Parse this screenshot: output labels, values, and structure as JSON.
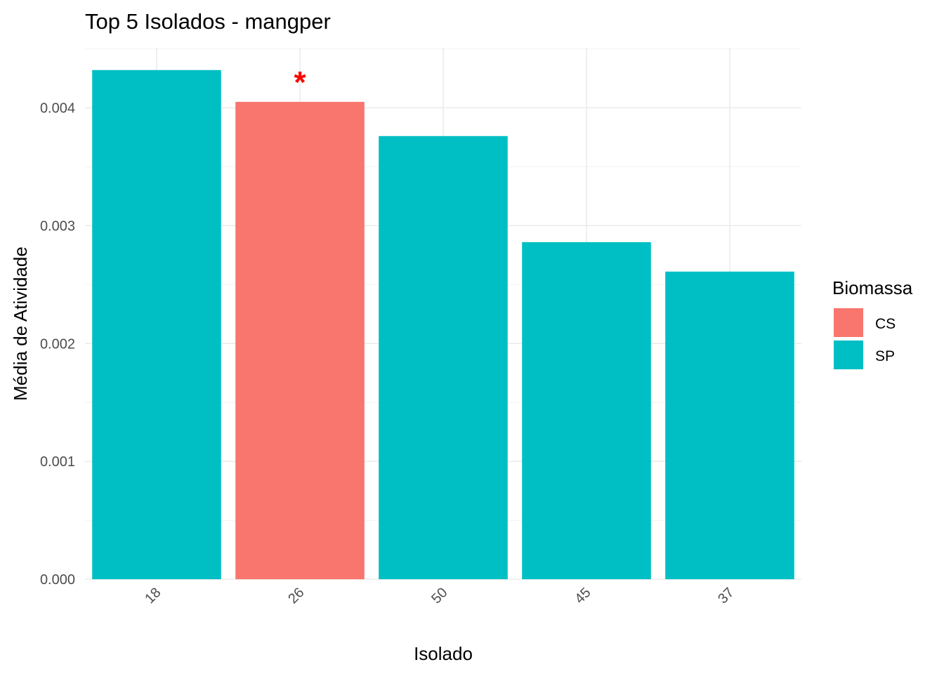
{
  "chart_data": {
    "type": "bar",
    "title": "Top 5 Isolados - mangper",
    "xlabel": "Isolado",
    "ylabel": "Média de Atividade",
    "categories": [
      "18",
      "26",
      "50",
      "45",
      "37"
    ],
    "values": [
      0.00432,
      0.00405,
      0.00376,
      0.00286,
      0.00261
    ],
    "groups": [
      "SP",
      "CS",
      "SP",
      "SP",
      "SP"
    ],
    "ylim": [
      0,
      0.0045
    ],
    "yticks": [
      "0.000",
      "0.001",
      "0.002",
      "0.003",
      "0.004"
    ],
    "ytick_values": [
      0,
      0.001,
      0.002,
      0.003,
      0.004
    ],
    "grid": true,
    "annotation": {
      "text": "*",
      "category": "26",
      "color": "#ff0000"
    },
    "legend": {
      "title": "Biomassa",
      "placement": "right",
      "entries": [
        {
          "label": "CS",
          "color": "#f8766d"
        },
        {
          "label": "SP",
          "color": "#00bfc4"
        }
      ]
    }
  }
}
